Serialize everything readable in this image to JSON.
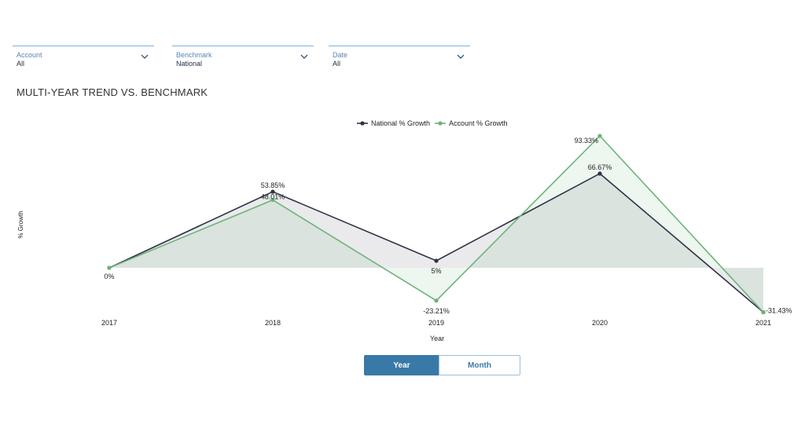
{
  "filters": {
    "account": {
      "label": "Account",
      "value": "All"
    },
    "benchmark": {
      "label": "Benchmark",
      "value": "National"
    },
    "date": {
      "label": "Date",
      "value": "All"
    }
  },
  "page_title": "MULTI-YEAR TREND VS. BENCHMARK",
  "toggle": {
    "year_label": "Year",
    "month_label": "Month",
    "selected": "Year"
  },
  "chart_data": {
    "type": "line",
    "title": "",
    "xlabel": "Year",
    "ylabel": "% Growth",
    "categories": [
      "2017",
      "2018",
      "2019",
      "2020",
      "2021"
    ],
    "series": [
      {
        "name": "National % Growth",
        "color": "#2e3347",
        "values": [
          0,
          53.85,
          5,
          66.67,
          -31.43
        ],
        "labels": [
          "0%",
          "53.85%",
          "5%",
          "66.67%",
          ""
        ]
      },
      {
        "name": "Account % Growth",
        "color": "#6db37a",
        "values": [
          0,
          48.01,
          -23.21,
          93.33,
          -31.43
        ],
        "labels": [
          "",
          "48.01%",
          "-23.21%",
          "93.33%",
          "-31.43%"
        ]
      }
    ],
    "legend_position": "top-center",
    "grid": false,
    "fill_area": true
  }
}
